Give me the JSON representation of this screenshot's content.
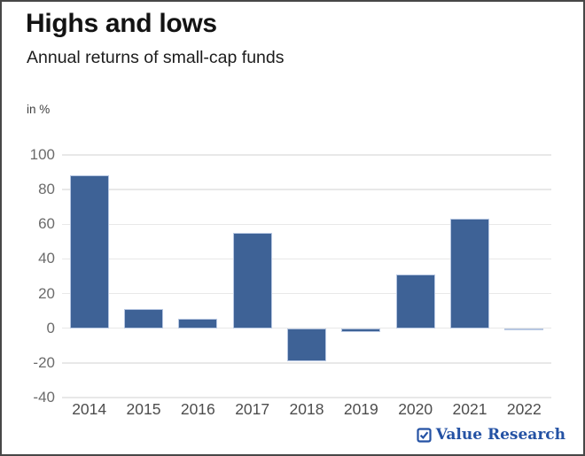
{
  "header": {
    "title": "Highs and lows",
    "subtitle": "Annual returns of small-cap funds"
  },
  "chart_data": {
    "type": "bar",
    "title": "Highs and lows",
    "subtitle": "Annual returns of small-cap funds",
    "unit_label": "in %",
    "categories": [
      "2014",
      "2015",
      "2016",
      "2017",
      "2018",
      "2019",
      "2020",
      "2021",
      "2022"
    ],
    "values": [
      88,
      11,
      5.5,
      55,
      -19,
      -2,
      31,
      63,
      -1
    ],
    "xlabel": "",
    "ylabel": "in %",
    "ylim": [
      -40,
      100
    ],
    "yticks": [
      100,
      80,
      60,
      40,
      20,
      0,
      -20,
      -40
    ],
    "grid": true,
    "legend_position": "none",
    "colors": {
      "bar_fill": "#3e6296",
      "bar_stroke": "#b7c7e2",
      "gridline": "#e8e8e8",
      "y_axis_text": "#6b6b6b",
      "x_axis_text": "#4d4d4d"
    }
  },
  "branding": {
    "logo_text": "Value Research",
    "logo_icon": "checkbox-check-icon",
    "logo_color": "#2452a4"
  }
}
